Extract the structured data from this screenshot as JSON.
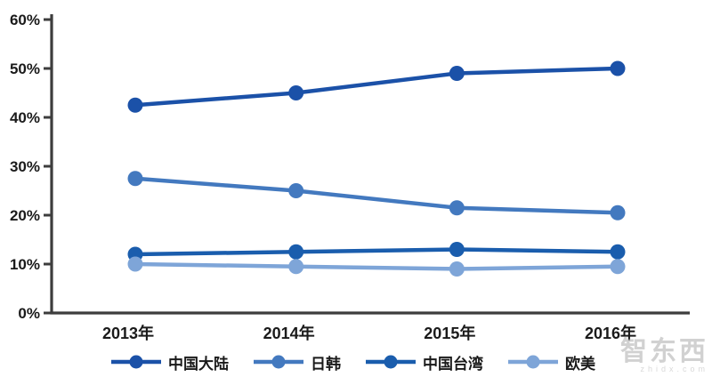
{
  "chart_data": {
    "type": "line",
    "title": "",
    "xlabel": "",
    "ylabel": "",
    "categories": [
      "2013年",
      "2014年",
      "2015年",
      "2016年"
    ],
    "series": [
      {
        "name": "中国大陆",
        "values": [
          42.5,
          45,
          49,
          50
        ],
        "color": "#1B51A8"
      },
      {
        "name": "日韩",
        "values": [
          27.5,
          25,
          21.5,
          20.5
        ],
        "color": "#4379BF"
      },
      {
        "name": "中国台湾",
        "values": [
          12,
          12.5,
          13,
          12.5
        ],
        "color": "#1A5DAD"
      },
      {
        "name": "欧美",
        "values": [
          10,
          9.5,
          9,
          9.5
        ],
        "color": "#7EA5D8"
      }
    ],
    "ylim": [
      0,
      60
    ],
    "ytick_step": 10,
    "ytick_labels": [
      "0%",
      "10%",
      "20%",
      "30%",
      "40%",
      "50%",
      "60%"
    ],
    "grid": false,
    "legend_position": "bottom"
  },
  "colors": {
    "axis": "#3d3d3d",
    "text": "#1a1a1a",
    "background": "#ffffff"
  },
  "watermark": {
    "logo_text": "智东西",
    "domain_text": "zhidx.com"
  }
}
